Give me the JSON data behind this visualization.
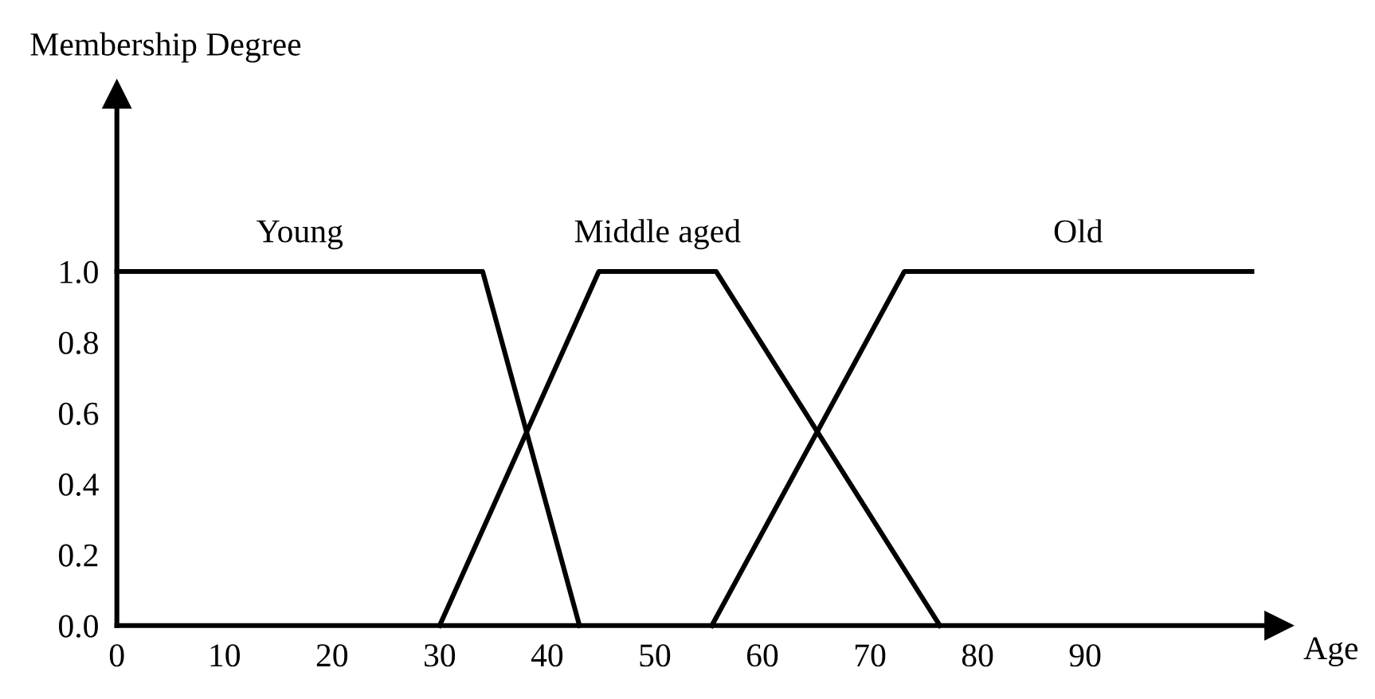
{
  "chart_data": {
    "type": "line",
    "xlabel": "Age",
    "ylabel": "Membership Degree",
    "series": [
      {
        "name": "Young",
        "color": "#000000",
        "x": [
          0,
          34,
          43
        ],
        "values": [
          1.0,
          1.0,
          0.0
        ]
      },
      {
        "name": "Middle aged",
        "color": "#000000",
        "x": [
          30,
          44.8,
          55.7,
          76.5
        ],
        "values": [
          0.0,
          1.0,
          1.0,
          0.0
        ]
      },
      {
        "name": "Old",
        "color": "#000000",
        "x": [
          55.3,
          73.2,
          105.5
        ],
        "values": [
          0.0,
          1.0,
          1.0
        ]
      }
    ],
    "xlim": [
      0,
      108
    ],
    "ylim": [
      0,
      1.5
    ],
    "xticks": [
      0,
      10,
      20,
      30,
      40,
      50,
      60,
      70,
      80,
      90
    ],
    "yticks": [
      {
        "value": 0,
        "label": "0.0"
      },
      {
        "value": 0.2,
        "label": "0.2"
      },
      {
        "value": 0.4,
        "label": "0.4"
      },
      {
        "value": 0.6,
        "label": "0.6"
      },
      {
        "value": 0.8,
        "label": "0.8"
      },
      {
        "value": 1.0,
        "label": "1.0"
      }
    ],
    "grid": false,
    "legend": false,
    "marker": "none",
    "line_style": "solid"
  }
}
